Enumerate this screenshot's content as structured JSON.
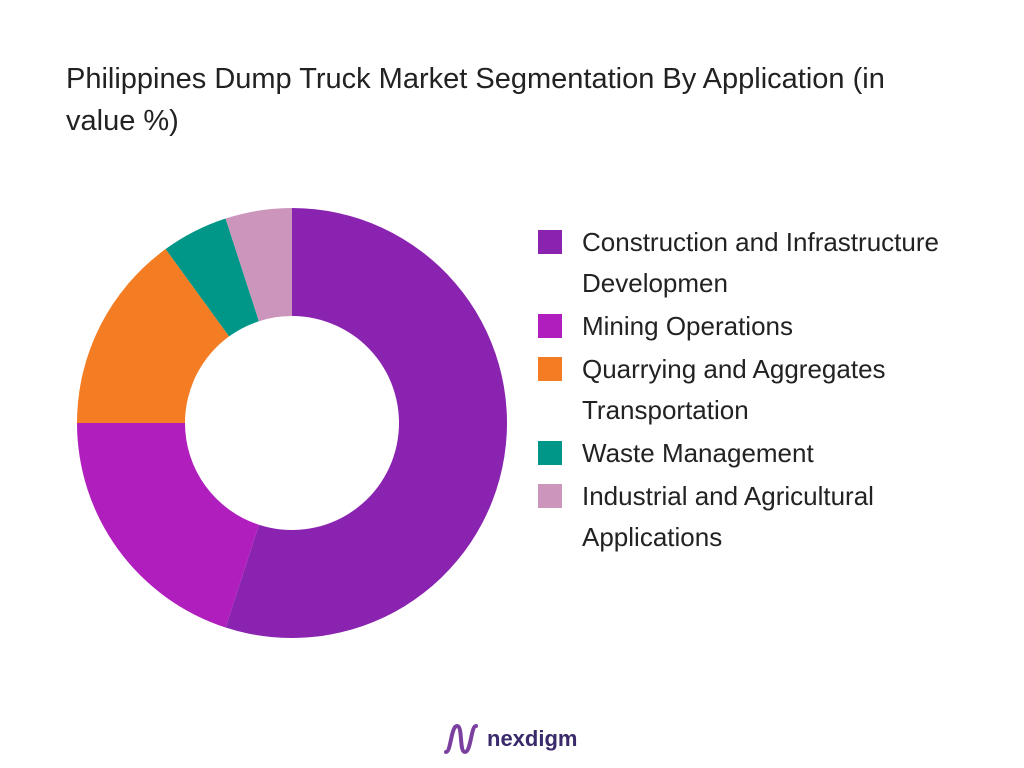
{
  "chart_data": {
    "type": "donut",
    "title": "Philippines Dump Truck Market Segmentation By Application (in value %)",
    "categories": [
      "Construction and Infrastructure Developmen",
      "Mining Operations",
      "Quarrying and Aggregates Transportation",
      "Waste Management",
      "Industrial and Agricultural Applications"
    ],
    "values": [
      55,
      20,
      15,
      5,
      5
    ],
    "colors": [
      "#8a24b0",
      "#b01fbd",
      "#f47c22",
      "#009688",
      "#cc96bc"
    ]
  },
  "footer": {
    "brand": "nexdigm"
  }
}
